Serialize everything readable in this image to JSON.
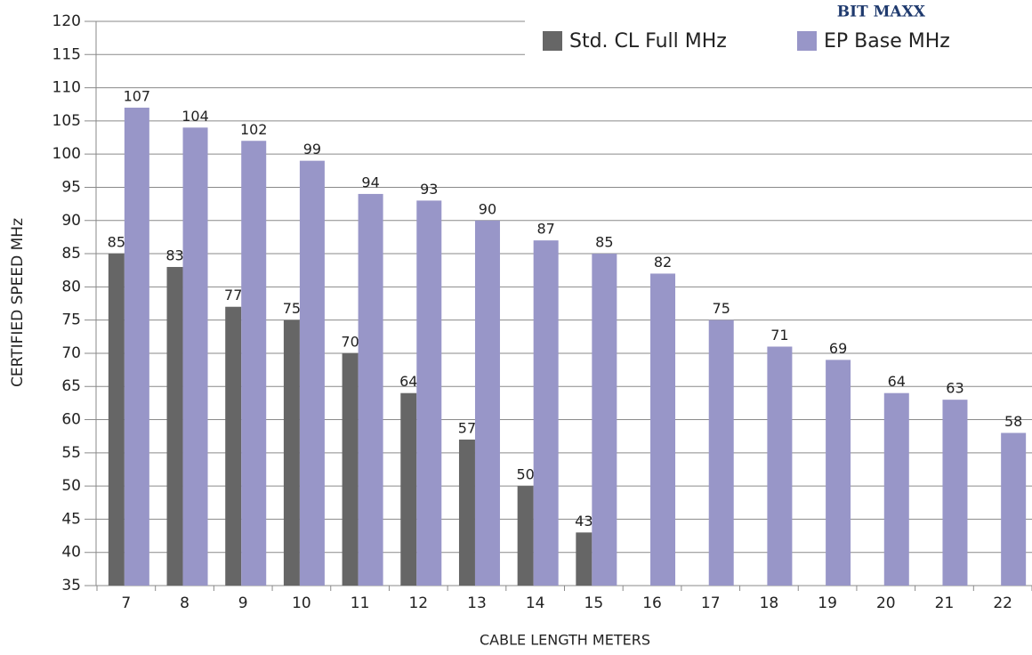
{
  "chart_data": {
    "type": "bar",
    "brand": "BIT MAXX",
    "x_label": "CABLE LENGTH METERS",
    "y_label": "CERTIFIED SPEED MHz",
    "categories": [
      "7",
      "8",
      "9",
      "10",
      "11",
      "12",
      "13",
      "14",
      "15",
      "16",
      "17",
      "18",
      "19",
      "20",
      "21",
      "22"
    ],
    "series": [
      {
        "name": "Std. CL Full MHz",
        "color": "#666666",
        "values": [
          85,
          83,
          77,
          75,
          70,
          64,
          57,
          50,
          43,
          null,
          null,
          null,
          null,
          null,
          null,
          null
        ]
      },
      {
        "name": "EP Base MHz",
        "color": "#9896c8",
        "values": [
          107,
          104,
          102,
          99,
          94,
          93,
          90,
          87,
          85,
          82,
          75,
          71,
          69,
          64,
          63,
          58
        ]
      }
    ],
    "ylim": [
      35,
      120
    ],
    "yticks": [
      35,
      40,
      45,
      50,
      55,
      60,
      65,
      70,
      75,
      80,
      85,
      90,
      95,
      100,
      105,
      110,
      115,
      120
    ],
    "grid": true,
    "legend": "top-right"
  }
}
